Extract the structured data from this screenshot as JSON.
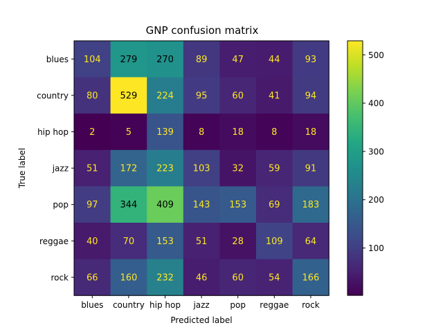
{
  "chart_data": {
    "type": "heatmap",
    "title": "GNP confusion matrix",
    "xlabel": "Predicted label",
    "ylabel": "True label",
    "x_categories": [
      "blues",
      "country",
      "hip hop",
      "jazz",
      "pop",
      "reggae",
      "rock"
    ],
    "y_categories": [
      "blues",
      "country",
      "hip hop",
      "jazz",
      "pop",
      "reggae",
      "rock"
    ],
    "values": [
      [
        104,
        279,
        270,
        89,
        47,
        44,
        93
      ],
      [
        80,
        529,
        224,
        95,
        60,
        41,
        94
      ],
      [
        2,
        5,
        139,
        8,
        18,
        8,
        18
      ],
      [
        51,
        172,
        223,
        103,
        32,
        59,
        91
      ],
      [
        97,
        344,
        409,
        143,
        153,
        69,
        183
      ],
      [
        40,
        70,
        153,
        51,
        28,
        109,
        64
      ],
      [
        66,
        160,
        232,
        46,
        60,
        54,
        166
      ]
    ],
    "colormap": "viridis",
    "colorbar": {
      "range": [
        2,
        529
      ],
      "ticks": [
        100,
        200,
        300,
        400,
        500
      ]
    },
    "text_color_light": "#fde725",
    "text_color_dark": "#000000"
  }
}
